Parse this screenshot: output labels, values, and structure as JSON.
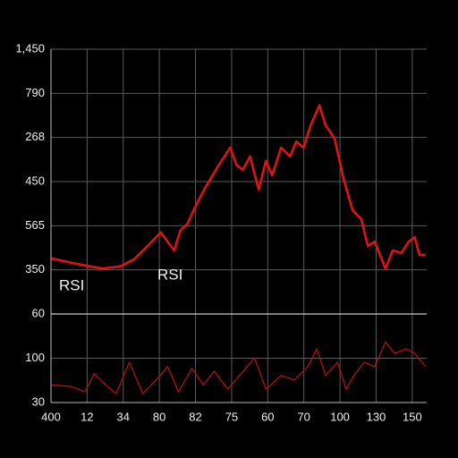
{
  "chart_data": [
    {
      "type": "line",
      "xlim": [
        0,
        10.4
      ],
      "ylim": [
        0,
        6
      ],
      "yticks": [
        {
          "value": 1,
          "label": "350"
        },
        {
          "value": 2,
          "label": "565"
        },
        {
          "value": 3,
          "label": "450"
        },
        {
          "value": 4,
          "label": "268"
        },
        {
          "value": 5,
          "label": "790"
        },
        {
          "value": 6,
          "label": "1,450"
        }
      ],
      "grid": true,
      "annotations": [
        "RSI",
        "RSI"
      ],
      "series": [
        {
          "color": "#e01212",
          "x": [
            0,
            0.57,
            1.06,
            1.43,
            1.93,
            2.3,
            2.67,
            3.04,
            3.23,
            3.41,
            3.58,
            3.78,
            3.98,
            4.27,
            4.64,
            4.96,
            5.14,
            5.31,
            5.51,
            5.75,
            5.95,
            6.12,
            6.37,
            6.62,
            6.79,
            6.99,
            7.19,
            7.43,
            7.6,
            7.85,
            8.1,
            8.35,
            8.59,
            8.77,
            8.96,
            9.26,
            9.46,
            9.7,
            9.9,
            10.07,
            10.2,
            10.37
          ],
          "values": [
            1.26,
            1.16,
            1.08,
            1.03,
            1.08,
            1.24,
            1.54,
            1.85,
            1.64,
            1.44,
            1.89,
            2.05,
            2.41,
            2.86,
            3.37,
            3.77,
            3.37,
            3.27,
            3.57,
            2.82,
            3.47,
            3.14,
            3.77,
            3.57,
            3.91,
            3.77,
            4.28,
            4.73,
            4.28,
            3.98,
            3.06,
            2.35,
            2.15,
            1.54,
            1.64,
            1.03,
            1.44,
            1.38,
            1.64,
            1.74,
            1.34,
            1.34
          ]
        }
      ]
    },
    {
      "type": "line",
      "xlim": [
        0,
        10.4
      ],
      "ylim": [
        0,
        2
      ],
      "yticks": [
        {
          "value": 0,
          "label": "30"
        },
        {
          "value": 1,
          "label": "100"
        },
        {
          "value": 2,
          "label": "60"
        }
      ],
      "xticks": [
        {
          "value": 0,
          "label": "400"
        },
        {
          "value": 1,
          "label": "12"
        },
        {
          "value": 2,
          "label": "34"
        },
        {
          "value": 3,
          "label": "80"
        },
        {
          "value": 4,
          "label": "82"
        },
        {
          "value": 5,
          "label": "75"
        },
        {
          "value": 6,
          "label": "60"
        },
        {
          "value": 7,
          "label": "70"
        },
        {
          "value": 8,
          "label": "100"
        },
        {
          "value": 9,
          "label": "130"
        },
        {
          "value": 10,
          "label": "150"
        }
      ],
      "grid": true,
      "series": [
        {
          "color": "#b01010",
          "x": [
            0,
            0.57,
            0.94,
            1.19,
            1.51,
            1.8,
            2.17,
            2.54,
            2.91,
            3.23,
            3.53,
            3.9,
            4.22,
            4.52,
            4.89,
            5.26,
            5.63,
            5.95,
            6.37,
            6.74,
            7.11,
            7.36,
            7.6,
            7.93,
            8.17,
            8.42,
            8.67,
            8.96,
            9.26,
            9.51,
            9.83,
            10.07,
            10.37
          ],
          "values": [
            0.4,
            0.36,
            0.24,
            0.65,
            0.4,
            0.2,
            0.91,
            0.2,
            0.51,
            0.81,
            0.24,
            0.77,
            0.4,
            0.71,
            0.3,
            0.65,
            1.01,
            0.3,
            0.61,
            0.51,
            0.81,
            1.21,
            0.61,
            0.91,
            0.3,
            0.65,
            0.91,
            0.81,
            1.37,
            1.11,
            1.21,
            1.11,
            0.81
          ]
        }
      ]
    }
  ]
}
